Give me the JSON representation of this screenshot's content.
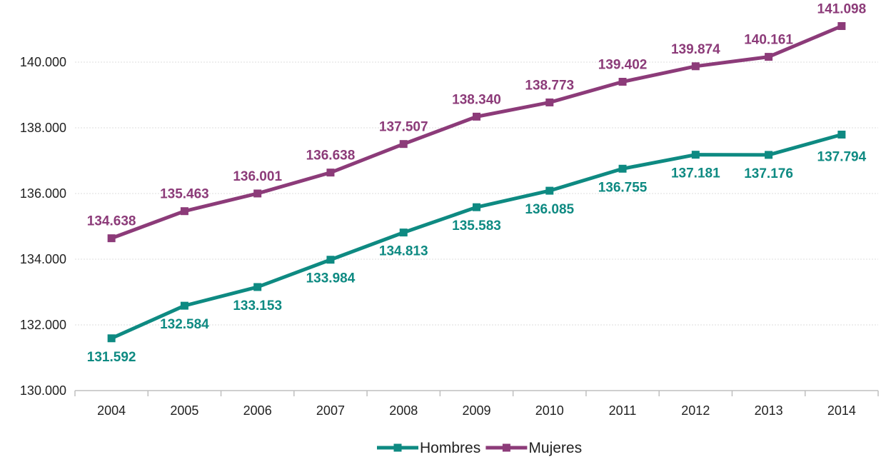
{
  "chart_data": {
    "type": "line",
    "title": "",
    "xlabel": "",
    "ylabel": "",
    "x": [
      "2004",
      "2005",
      "2006",
      "2007",
      "2008",
      "2009",
      "2010",
      "2011",
      "2012",
      "2013",
      "2014"
    ],
    "ylim": [
      130000,
      141000
    ],
    "yticks": [
      130000,
      132000,
      134000,
      136000,
      138000,
      140000
    ],
    "ytick_labels": [
      "130.000",
      "132.000",
      "134.000",
      "136.000",
      "138.000",
      "140.000"
    ],
    "grid": "horizontal",
    "legend_position": "bottom",
    "series": [
      {
        "name": "Hombres",
        "color": "#0e8a82",
        "label_side": "below",
        "values": [
          131592,
          132584,
          133153,
          133984,
          134813,
          135583,
          136085,
          136755,
          137181,
          137176,
          137794
        ],
        "labels": [
          "131.592",
          "132.584",
          "133.153",
          "133.984",
          "134.813",
          "135.583",
          "136.085",
          "136.755",
          "137.181",
          "137.176",
          "137.794"
        ]
      },
      {
        "name": "Mujeres",
        "color": "#8c3b79",
        "label_side": "above",
        "values": [
          134638,
          135463,
          136001,
          136638,
          137507,
          138340,
          138773,
          139402,
          139874,
          140161,
          141098
        ],
        "labels": [
          "134.638",
          "135.463",
          "136.001",
          "136.638",
          "137.507",
          "138.340",
          "138.773",
          "139.402",
          "139.874",
          "140.161",
          "141.098"
        ]
      }
    ]
  }
}
